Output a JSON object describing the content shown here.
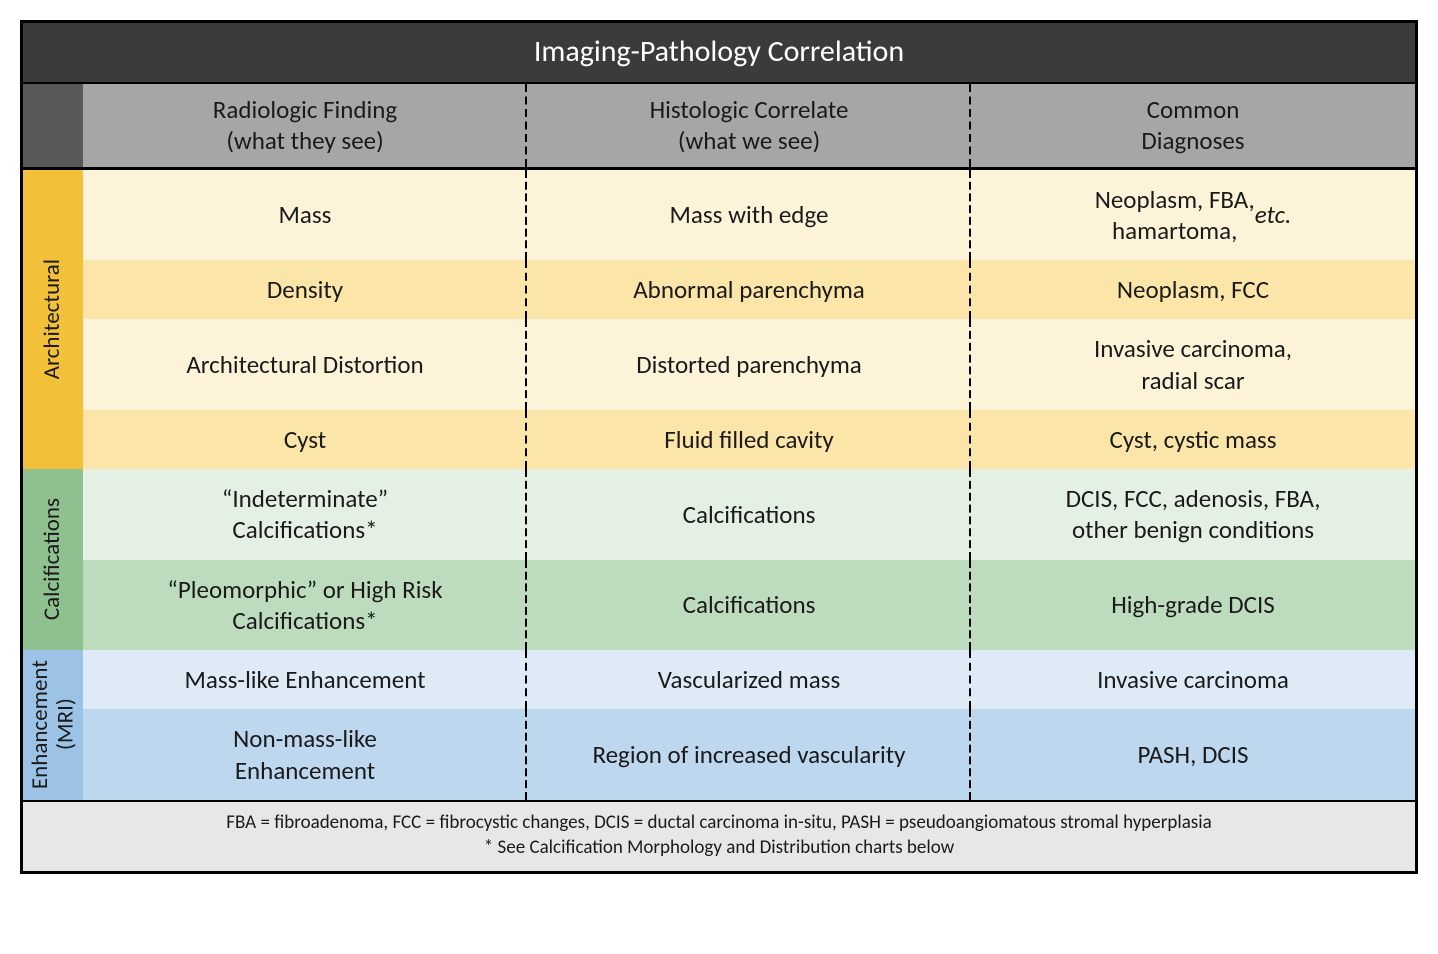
{
  "title": "Imaging-Pathology Correlation",
  "columns": [
    {
      "line1": "Radiologic Finding",
      "line2": "(what they see)"
    },
    {
      "line1": "Histologic Correlate",
      "line2": "(what we see)"
    },
    {
      "line1": "Common",
      "line2": "Diagnoses"
    }
  ],
  "sections": [
    {
      "label": "Architectural",
      "cat_bg": "#f2c039",
      "row_bgs": [
        "#fdf3d9",
        "#fbe5a8",
        "#fdf3d9",
        "#fbe5a8"
      ],
      "rows": [
        {
          "finding": "Mass",
          "correlate": "Mass with edge",
          "diagnoses_html": "Neoplasm, FBA,<br>hamartoma, <span class=\"ital\">etc.</span>"
        },
        {
          "finding": "Density",
          "correlate": "Abnormal parenchyma",
          "diagnoses_html": "Neoplasm, FCC"
        },
        {
          "finding": "Architectural Distortion",
          "correlate": "Distorted parenchyma",
          "diagnoses_html": "Invasive carcinoma,<br>radial scar"
        },
        {
          "finding": "Cyst",
          "correlate": "Fluid filled cavity",
          "diagnoses_html": "Cyst, cystic mass"
        }
      ]
    },
    {
      "label": "Calcifications",
      "cat_bg": "#8fc08f",
      "row_bgs": [
        "#e4f0e4",
        "#bddcbd"
      ],
      "rows": [
        {
          "finding": "“Indeterminate”<br>Calcifications*",
          "correlate": "Calcifications",
          "diagnoses_html": "DCIS, FCC, adenosis, FBA,<br>other benign conditions"
        },
        {
          "finding": "“Pleomorphic” or High Risk<br>Calcifications*",
          "correlate": "Calcifications",
          "diagnoses_html": "High-grade DCIS"
        }
      ]
    },
    {
      "label": "Enhancement<br>(MRI)",
      "cat_bg": "#9cc3e6",
      "row_bgs": [
        "#deebf7",
        "#bdd7ee"
      ],
      "rows": [
        {
          "finding": "Mass-like Enhancement",
          "correlate": "Vascularized mass",
          "diagnoses_html": "Invasive carcinoma"
        },
        {
          "finding": "Non-mass-like<br>Enhancement",
          "correlate": "Region of increased vascularity",
          "diagnoses_html": "PASH, DCIS"
        }
      ]
    }
  ],
  "footer": {
    "line1": "FBA = fibroadenoma, FCC = fibrocystic changes, DCIS = ductal carcinoma in-situ, PASH = pseudoangiomatous stromal hyperplasia",
    "line2": "* See Calcification Morphology and Distribution charts below"
  },
  "colors": {
    "title_bg": "#3b3b3b",
    "header_bg": "#a6a6a6",
    "corner_bg": "#595959",
    "footer_bg": "#e7e7e7",
    "border": "#000000",
    "text": "#1a1a1a"
  }
}
